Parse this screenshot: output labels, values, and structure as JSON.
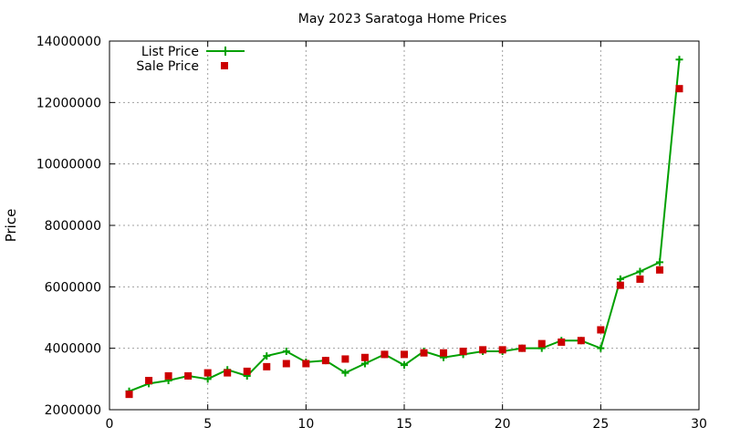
{
  "chart_data": {
    "type": "line",
    "title": "May 2023 Saratoga Home Prices",
    "xlabel": "",
    "ylabel": "Price",
    "xlim": [
      0,
      30
    ],
    "ylim": [
      2000000,
      14000000
    ],
    "x_ticks": [
      0,
      5,
      10,
      15,
      20,
      25,
      30
    ],
    "y_ticks": [
      2000000,
      4000000,
      6000000,
      8000000,
      10000000,
      12000000,
      14000000
    ],
    "x_tick_labels": [
      "0",
      "5",
      "10",
      "15",
      "20",
      "25",
      "30"
    ],
    "y_tick_labels": [
      "2000000",
      "4000000",
      "6000000",
      "8000000",
      "10000000",
      "12000000",
      "14000000"
    ],
    "grid": true,
    "legend_position": "top-left",
    "x": [
      1,
      2,
      3,
      4,
      5,
      6,
      7,
      8,
      9,
      10,
      11,
      12,
      13,
      14,
      15,
      16,
      17,
      18,
      19,
      20,
      21,
      22,
      23,
      24,
      25,
      26,
      27,
      28,
      29
    ],
    "series": [
      {
        "name": "List Price",
        "style": "line-plus",
        "color": "#00a000",
        "values": [
          2600000,
          2850000,
          2950000,
          3100000,
          3000000,
          3300000,
          3100000,
          3750000,
          3900000,
          3550000,
          3600000,
          3200000,
          3500000,
          3800000,
          3450000,
          3900000,
          3700000,
          3800000,
          3900000,
          3900000,
          4000000,
          4000000,
          4250000,
          4250000,
          4000000,
          6250000,
          6500000,
          6800000,
          13400000
        ]
      },
      {
        "name": "Sale Price",
        "style": "square",
        "color": "#cc0000",
        "values": [
          2500000,
          2950000,
          3100000,
          3100000,
          3200000,
          3200000,
          3250000,
          3400000,
          3500000,
          3500000,
          3600000,
          3650000,
          3700000,
          3800000,
          3800000,
          3850000,
          3850000,
          3900000,
          3950000,
          3950000,
          4000000,
          4150000,
          4200000,
          4250000,
          4600000,
          6050000,
          6250000,
          6550000,
          12450000
        ]
      }
    ]
  }
}
